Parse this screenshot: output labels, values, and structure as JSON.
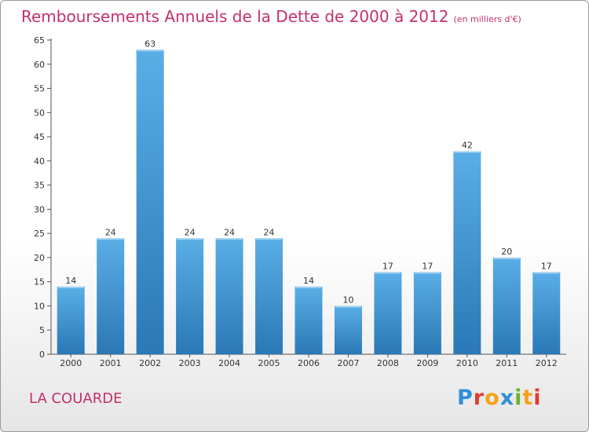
{
  "header": {
    "title": "Remboursements Annuels de la Dette de 2000 à 2012",
    "unit": "(en milliers d'€)"
  },
  "footer": {
    "commune": "LA COUARDE",
    "logo_letters": [
      {
        "char": "P",
        "color": "#2f8fd6"
      },
      {
        "char": "r",
        "color": "#e23b2e"
      },
      {
        "char": "o",
        "color": "#f5a21a"
      },
      {
        "char": "x",
        "color": "#2f8fd6"
      },
      {
        "char": "i",
        "color": "#67b52e"
      },
      {
        "char": "t",
        "color": "#f5a21a"
      },
      {
        "char": "i",
        "color": "#e23b2e"
      }
    ]
  },
  "chart_data": {
    "type": "bar",
    "categories": [
      "2000",
      "2001",
      "2002",
      "2003",
      "2004",
      "2005",
      "2006",
      "2007",
      "2008",
      "2009",
      "2010",
      "2011",
      "2012"
    ],
    "values": [
      14,
      24,
      63,
      24,
      24,
      24,
      14,
      10,
      17,
      17,
      42,
      20,
      17
    ],
    "ylim": [
      0,
      65
    ],
    "yticks": [
      0,
      5,
      10,
      15,
      20,
      25,
      30,
      35,
      40,
      45,
      50,
      55,
      60,
      65
    ],
    "grid": false,
    "bar_color_top": "#5aaee6",
    "bar_color_bottom": "#2a78b6",
    "title_color": "#c5306d"
  }
}
